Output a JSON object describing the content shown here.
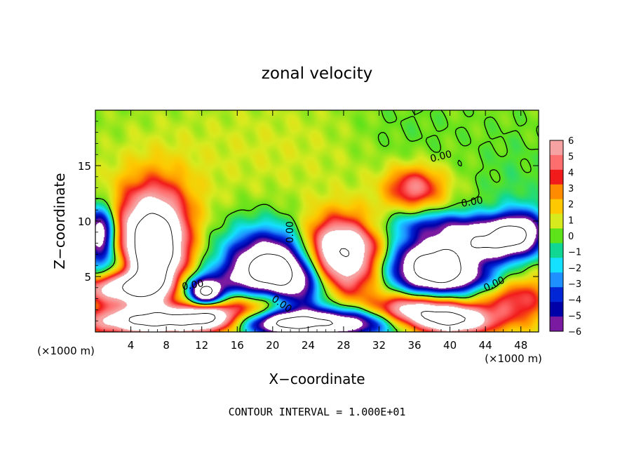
{
  "chart_data": {
    "type": "heatmap",
    "title": "zonal velocity",
    "xlabel": "X−coordinate",
    "ylabel": "Z−coordinate",
    "x_unit_label": "(×1000 m)",
    "z_unit_label": "(×1000 m)",
    "xlim": [
      0,
      50
    ],
    "ylim": [
      0,
      20
    ],
    "x_ticks": [
      4,
      8,
      12,
      16,
      20,
      24,
      28,
      32,
      36,
      40,
      44,
      48
    ],
    "x_tick_labels": [
      "4",
      "8",
      "12",
      "16",
      "20",
      "24",
      "28",
      "32",
      "36",
      "40",
      "44",
      "48"
    ],
    "y_ticks": [
      5,
      10,
      15
    ],
    "y_tick_labels": [
      "5",
      "10",
      "15"
    ],
    "colorbar": {
      "min": -6,
      "max": 6,
      "tick_labels": [
        "6",
        "5",
        "4",
        "3",
        "2",
        "1",
        "0",
        "−1",
        "−2",
        "−3",
        "−4",
        "−5",
        "−6"
      ],
      "colors": [
        "#f6a2a2",
        "#ff6e6e",
        "#f21b1b",
        "#ff8c00",
        "#ffc800",
        "#d7ea1e",
        "#5ee21a",
        "#10d894",
        "#14e0ff",
        "#1e90ff",
        "#0026d6",
        "#0000a8",
        "#7a1aa0"
      ]
    },
    "contour_labels": [
      "0.00",
      "0.00",
      "0.00",
      "0.00",
      "0.00",
      "0.00"
    ],
    "footer": "CONTOUR INTERVAL = 1.000E+01",
    "background_value": 0.3,
    "features": [
      {
        "x": 6.5,
        "z": 7.0,
        "sx": 2.4,
        "sz": 2.8,
        "amp": 12
      },
      {
        "x": 6.5,
        "z": 10.5,
        "sx": 3.3,
        "sz": 3.0,
        "amp": 4.5
      },
      {
        "x": 0.5,
        "z": 9.0,
        "sx": 1.2,
        "sz": 1.6,
        "amp": -9
      },
      {
        "x": 1.8,
        "z": 5.6,
        "sx": 2.5,
        "sz": 1.5,
        "amp": -3.5
      },
      {
        "x": 3.0,
        "z": 4.0,
        "sx": 3.8,
        "sz": 1.0,
        "amp": 9
      },
      {
        "x": 7.0,
        "z": 1.0,
        "sx": 6.0,
        "sz": 0.9,
        "amp": 10
      },
      {
        "x": 12.5,
        "z": 3.5,
        "sx": 1.2,
        "sz": 0.8,
        "amp": -9
      },
      {
        "x": 11.0,
        "z": 4.0,
        "sx": 2.8,
        "sz": 1.0,
        "amp": -3
      },
      {
        "x": 12.5,
        "z": 1.5,
        "sx": 1.8,
        "sz": 0.8,
        "amp": 5
      },
      {
        "x": 17.5,
        "z": 2.5,
        "sx": 3.0,
        "sz": 1.2,
        "amp": 5
      },
      {
        "x": 20.5,
        "z": 0.8,
        "sx": 3.2,
        "sz": 0.8,
        "amp": -10
      },
      {
        "x": 20.0,
        "z": 6.0,
        "sx": 3.5,
        "sz": 1.8,
        "amp": -12
      },
      {
        "x": 18.5,
        "z": 4.2,
        "sx": 5.0,
        "sz": 1.2,
        "amp": -3.5
      },
      {
        "x": 20.5,
        "z": 9.0,
        "sx": 4.5,
        "sz": 1.5,
        "amp": -1.5
      },
      {
        "x": 27.5,
        "z": 7.2,
        "sx": 3.3,
        "sz": 2.2,
        "amp": 11
      },
      {
        "x": 23.5,
        "z": 3.5,
        "sx": 2.0,
        "sz": 1.8,
        "amp": -4
      },
      {
        "x": 28.0,
        "z": 0.8,
        "sx": 4.0,
        "sz": 0.9,
        "amp": -9
      },
      {
        "x": 28.0,
        "z": 4.0,
        "sx": 4.0,
        "sz": 1.2,
        "amp": 1.5
      },
      {
        "x": 38.0,
        "z": 6.0,
        "sx": 3.5,
        "sz": 1.8,
        "amp": -12
      },
      {
        "x": 44.5,
        "z": 8.0,
        "sx": 3.0,
        "sz": 1.2,
        "amp": -8
      },
      {
        "x": 48.0,
        "z": 9.0,
        "sx": 2.0,
        "sz": 1.4,
        "amp": -7
      },
      {
        "x": 40.0,
        "z": 9.6,
        "sx": 5.5,
        "sz": 0.9,
        "amp": -4
      },
      {
        "x": 36.0,
        "z": 2.0,
        "sx": 3.5,
        "sz": 1.0,
        "amp": 8
      },
      {
        "x": 40.5,
        "z": 1.0,
        "sx": 3.0,
        "sz": 0.9,
        "amp": 9
      },
      {
        "x": 47.5,
        "z": 3.0,
        "sx": 3.0,
        "sz": 1.8,
        "amp": 4.5
      },
      {
        "x": 42.0,
        "z": 4.8,
        "sx": 4.0,
        "sz": 0.9,
        "amp": -3.5
      },
      {
        "x": 36.0,
        "z": 13.0,
        "sx": 2.3,
        "sz": 1.3,
        "amp": 5
      },
      {
        "x": 20.0,
        "z": 16.5,
        "sx": 12.0,
        "sz": 3.5,
        "amp": 0.7
      },
      {
        "x": 35.0,
        "z": 18.0,
        "sx": 5.0,
        "sz": 2.5,
        "amp": -0.6
      },
      {
        "x": 47.0,
        "z": 13.0,
        "sx": 3.0,
        "sz": 4.0,
        "amp": -0.7
      }
    ]
  }
}
